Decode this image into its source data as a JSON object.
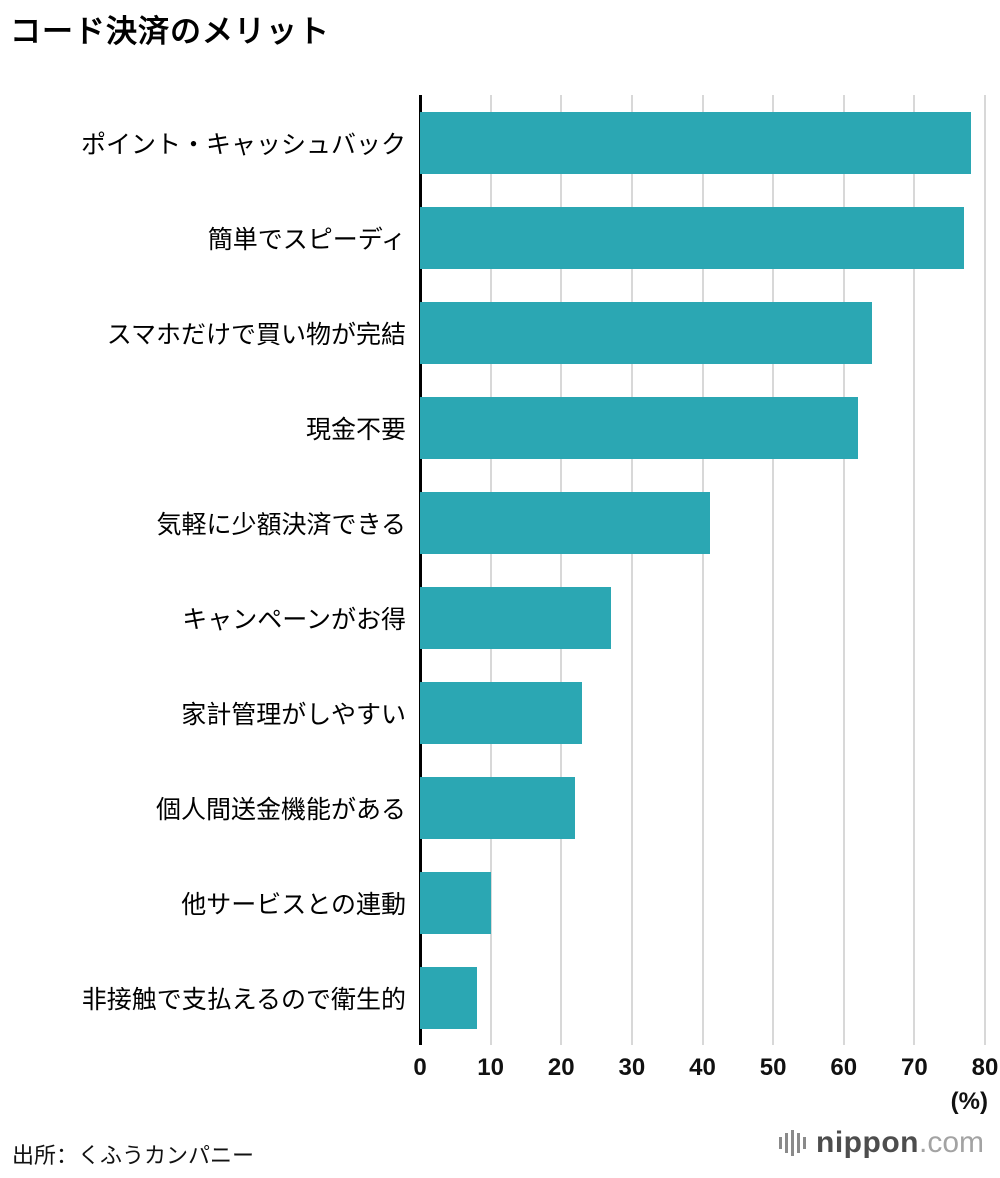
{
  "title": "コード決済のメリット",
  "source": "出所：くふうカンパニー",
  "logo": {
    "name": "nippon",
    "tld": ".com"
  },
  "chart_data": {
    "type": "bar",
    "orientation": "horizontal",
    "title": "コード決済のメリット",
    "categories": [
      "ポイント・キャッシュバック",
      "簡単でスピーディ",
      "スマホだけで買い物が完結",
      "現金不要",
      "気軽に少額決済できる",
      "キャンペーンがお得",
      "家計管理がしやすい",
      "個人間送金機能がある",
      "他サービスとの連動",
      "非接触で支払えるので衛生的"
    ],
    "values": [
      78,
      77,
      64,
      62,
      41,
      27,
      23,
      22,
      10,
      8
    ],
    "xlim": [
      0,
      80
    ],
    "xticks": [
      0,
      10,
      20,
      30,
      40,
      50,
      60,
      70,
      80
    ],
    "xlabel": "(%)",
    "bar_color": "#2ba7b3",
    "gridline_color": "#d8d8d8",
    "grid": true,
    "legend": "none"
  }
}
